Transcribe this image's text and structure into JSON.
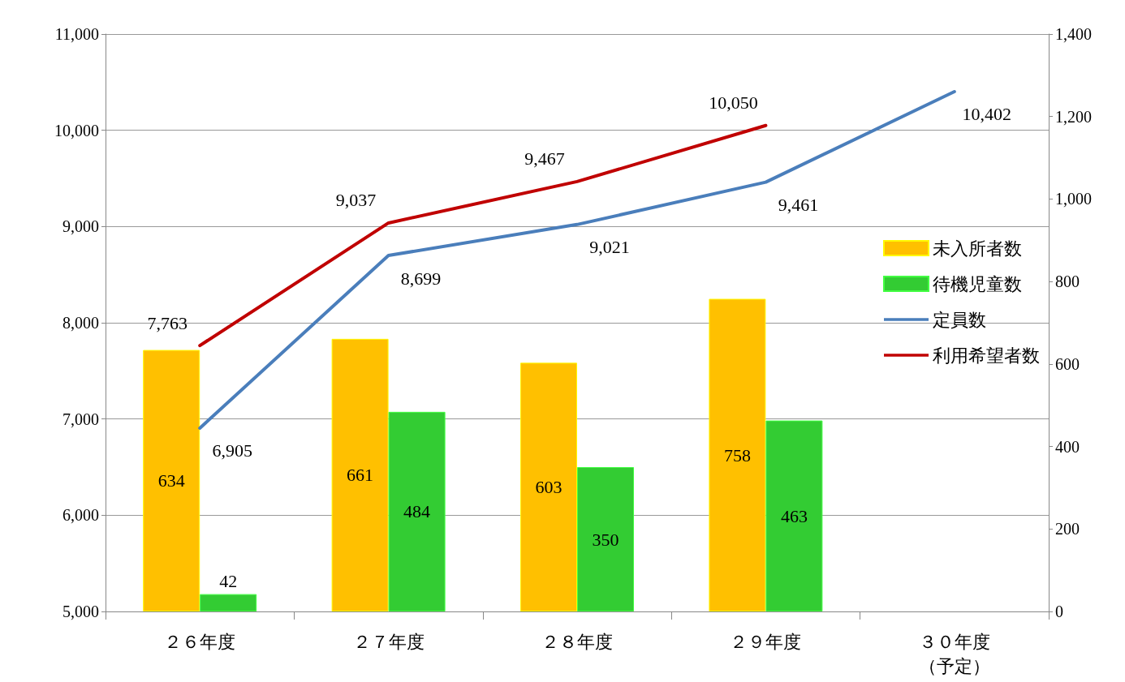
{
  "chart_data": {
    "type": "bar",
    "categories": [
      "２６年度",
      "２７年度",
      "２８年度",
      "２９年度",
      "３０年度（予定）"
    ],
    "series": [
      {
        "name": "未入所者数",
        "axis": "y2",
        "color": "#ffc000",
        "values": [
          634,
          661,
          603,
          758,
          null
        ],
        "value_labels": [
          "634",
          "661",
          "603",
          "758",
          null
        ]
      },
      {
        "name": "待機児童数",
        "axis": "y2",
        "color": "#33cc33",
        "values": [
          42,
          484,
          350,
          463,
          null
        ],
        "value_labels": [
          "42",
          "484",
          "350",
          "463",
          null
        ]
      },
      {
        "name": "定員数",
        "type": "line",
        "color": "#4a7ebb",
        "values": [
          6905,
          8699,
          9021,
          9461,
          10402
        ],
        "value_labels": [
          "6,905",
          "8,699",
          "9,021",
          "9,461",
          "10,402"
        ]
      },
      {
        "name": "利用希望者数",
        "type": "line",
        "color": "#c00000",
        "values": [
          7763,
          9037,
          9467,
          10050,
          null
        ],
        "value_labels": [
          "7,763",
          "9,037",
          "9,467",
          "10,050",
          null
        ]
      }
    ],
    "ylim": [
      5000,
      11000
    ],
    "yticks": [
      {
        "value": 5000,
        "label": "5,000"
      },
      {
        "value": 6000,
        "label": "6,000"
      },
      {
        "value": 7000,
        "label": "7,000"
      },
      {
        "value": 8000,
        "label": "8,000"
      },
      {
        "value": 9000,
        "label": "9,000"
      },
      {
        "value": 10000,
        "label": "10,000"
      },
      {
        "value": 11000,
        "label": "11,000"
      }
    ],
    "y2lim": [
      0,
      1400
    ],
    "y2ticks": [
      0,
      200,
      400,
      600,
      {
        "value": 800,
        "label": "800"
      },
      {
        "value": 1000,
        "label": "1,000"
      },
      {
        "value": 1200,
        "label": "1,200"
      },
      {
        "value": 1400,
        "label": "1,400"
      }
    ],
    "grid": "y",
    "legend": "right",
    "marker": "none",
    "line_style": "solid"
  }
}
